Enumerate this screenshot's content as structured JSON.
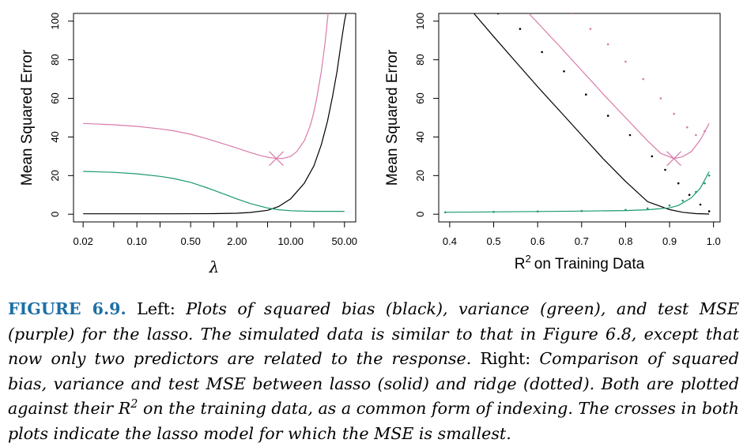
{
  "colors": {
    "bias": "#000000",
    "variance": "#1a9870",
    "test_mse": "#d97aaa",
    "caption_label": "#1d6fa5"
  },
  "chart_data": [
    {
      "type": "line",
      "panel": "left",
      "xlabel": "λ",
      "ylabel": "Mean Squared Error",
      "xscale": "log",
      "xlim": [
        0.015,
        70
      ],
      "ylim": [
        -4,
        104
      ],
      "xticks": [
        "0.02",
        "0.10",
        "0.50",
        "2.00",
        "10.00",
        "50.00"
      ],
      "yticks": [
        "0",
        "20",
        "40",
        "60",
        "80",
        "100"
      ],
      "grid": false,
      "legend": "none",
      "series": [
        {
          "color": "black",
          "style": "solid",
          "x": [
            0.02,
            0.05,
            0.1,
            0.3,
            1,
            2,
            3,
            5,
            7,
            10,
            15,
            20,
            25,
            30,
            35,
            40,
            45,
            50,
            55
          ],
          "y": [
            0.2,
            0.2,
            0.2,
            0.2,
            0.3,
            0.5,
            0.9,
            2,
            4,
            8,
            16,
            25,
            36,
            48,
            61,
            74,
            88,
            100,
            108
          ]
        },
        {
          "color": "green",
          "style": "solid",
          "x": [
            0.02,
            0.05,
            0.1,
            0.2,
            0.3,
            0.5,
            0.8,
            1,
            1.5,
            2,
            3,
            5,
            7,
            10,
            15,
            20,
            50
          ],
          "y": [
            22.2,
            21.7,
            20.9,
            19.6,
            18.5,
            16.5,
            13.8,
            12.4,
            9.8,
            7.9,
            5.5,
            3.2,
            2.3,
            1.8,
            1.6,
            1.5,
            1.5
          ]
        },
        {
          "color": "purple",
          "style": "solid",
          "x": [
            0.02,
            0.05,
            0.1,
            0.2,
            0.3,
            0.5,
            0.8,
            1,
            1.5,
            2,
            3,
            4,
            5,
            6,
            7,
            8,
            10,
            12,
            15,
            18,
            20,
            22,
            25,
            28,
            31
          ],
          "y": [
            47.0,
            46.3,
            45.5,
            44.2,
            43.2,
            41.4,
            39.2,
            38.0,
            35.8,
            34.2,
            31.9,
            30.4,
            29.5,
            29.0,
            28.8,
            28.9,
            30.0,
            32.5,
            38.0,
            46.0,
            53.0,
            61.0,
            74.0,
            89.0,
            106.0
          ]
        }
      ],
      "markers": [
        {
          "x": 6.5,
          "y": 28.8,
          "shape": "cross",
          "color": "purple"
        }
      ]
    },
    {
      "type": "line",
      "panel": "right",
      "xlabel_main": "R",
      "xlabel_sup": "2",
      "xlabel_rest": "on Training Data",
      "ylabel": "Mean Squared Error",
      "xlim": [
        0.375,
        1.015
      ],
      "ylim": [
        -4,
        104
      ],
      "xticks": [
        "0.4",
        "0.5",
        "0.6",
        "0.7",
        "0.8",
        "0.9",
        "1.0"
      ],
      "yticks": [
        "0",
        "20",
        "40",
        "60",
        "80",
        "100"
      ],
      "grid": false,
      "legend": "none",
      "series": [
        {
          "color": "black",
          "style": "solid",
          "x": [
            0.455,
            0.5,
            0.55,
            0.6,
            0.65,
            0.7,
            0.75,
            0.8,
            0.85,
            0.9,
            0.93,
            0.96,
            0.99
          ],
          "y": [
            104,
            92,
            79,
            66,
            53.5,
            41,
            28.5,
            17,
            6.5,
            2.4,
            1.0,
            0.3,
            0.1
          ]
        },
        {
          "color": "green",
          "style": "solid",
          "x": [
            0.39,
            0.5,
            0.6,
            0.7,
            0.8,
            0.85,
            0.9,
            0.92,
            0.95,
            0.97,
            0.99
          ],
          "y": [
            1.0,
            1.2,
            1.4,
            1.6,
            1.9,
            2.3,
            3.3,
            4.5,
            8.5,
            13.5,
            22
          ]
        },
        {
          "color": "purple",
          "style": "solid",
          "x": [
            0.58,
            0.65,
            0.7,
            0.75,
            0.8,
            0.85,
            0.88,
            0.91,
            0.93,
            0.95,
            0.97,
            0.99
          ],
          "y": [
            104,
            87,
            74.5,
            62,
            50,
            38,
            31.5,
            28.8,
            29.8,
            32.5,
            38.5,
            47
          ]
        },
        {
          "color": "black",
          "style": "dotted",
          "x": [
            0.51,
            0.56,
            0.61,
            0.66,
            0.71,
            0.76,
            0.81,
            0.86,
            0.89,
            0.92,
            0.945,
            0.97,
            0.99
          ],
          "y": [
            104,
            96,
            84,
            74,
            62,
            51,
            41,
            30,
            23,
            16,
            10,
            5,
            1.5
          ]
        },
        {
          "color": "green",
          "style": "dotted",
          "x": [
            0.39,
            0.5,
            0.6,
            0.7,
            0.8,
            0.85,
            0.9,
            0.93,
            0.96,
            0.98,
            0.99
          ],
          "y": [
            1.0,
            1.2,
            1.4,
            1.7,
            2.2,
            3.0,
            4.5,
            7,
            11.5,
            16,
            20
          ]
        },
        {
          "color": "purple",
          "style": "dotted",
          "x": [
            0.68,
            0.72,
            0.76,
            0.8,
            0.84,
            0.88,
            0.91,
            0.94,
            0.96,
            0.98
          ],
          "y": [
            104,
            96,
            88,
            79,
            70,
            60,
            52,
            45,
            41,
            43
          ]
        }
      ],
      "markers": [
        {
          "x": 0.91,
          "y": 28.8,
          "shape": "cross",
          "color": "purple"
        }
      ]
    }
  ],
  "caption": {
    "label": "FIGURE 6.9.",
    "s1": " Left: ",
    "s2": "Plots of squared bias (black), variance (green), and test MSE (purple) for the lasso. The simulated data is similar to that in Figure 6.8, except that now only two predictors are related to the response.",
    "s3": " Right: ",
    "s4": "Comparison of squared bias, variance and test MSE between lasso (solid) and ridge (dotted). Both are plotted against their R",
    "s4_sup": "2",
    "s5": " on the training data, as a common form of indexing. The crosses in both plots indicate the lasso model for which the MSE is smallest."
  }
}
